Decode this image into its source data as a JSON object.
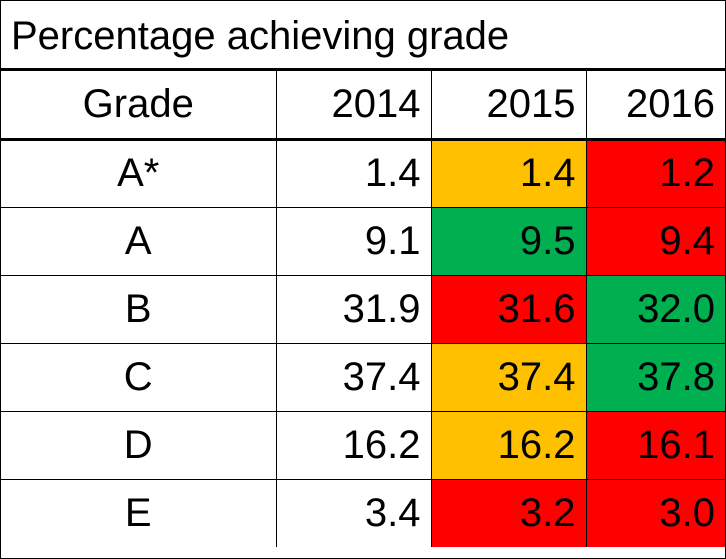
{
  "title": "Percentage achieving grade",
  "headers": [
    "Grade",
    "2014",
    "2015",
    "2016"
  ],
  "colors": {
    "amber": "#FFC000",
    "green": "#00B050",
    "red": "#FF0000"
  },
  "rows": [
    {
      "grade": "A*",
      "y2014": "1.4",
      "y2015": "1.4",
      "y2016": "1.2",
      "c2015": "#FFC000",
      "c2016": "#FF0000"
    },
    {
      "grade": "A",
      "y2014": "9.1",
      "y2015": "9.5",
      "y2016": "9.4",
      "c2015": "#00B050",
      "c2016": "#FF0000"
    },
    {
      "grade": "B",
      "y2014": "31.9",
      "y2015": "31.6",
      "y2016": "32.0",
      "c2015": "#FF0000",
      "c2016": "#00B050"
    },
    {
      "grade": "C",
      "y2014": "37.4",
      "y2015": "37.4",
      "y2016": "37.8",
      "c2015": "#FFC000",
      "c2016": "#00B050"
    },
    {
      "grade": "D",
      "y2014": "16.2",
      "y2015": "16.2",
      "y2016": "16.1",
      "c2015": "#FFC000",
      "c2016": "#FF0000"
    },
    {
      "grade": "E",
      "y2014": "3.4",
      "y2015": "3.2",
      "y2016": "3.0",
      "c2015": "#FF0000",
      "c2016": "#FF0000"
    }
  ]
}
